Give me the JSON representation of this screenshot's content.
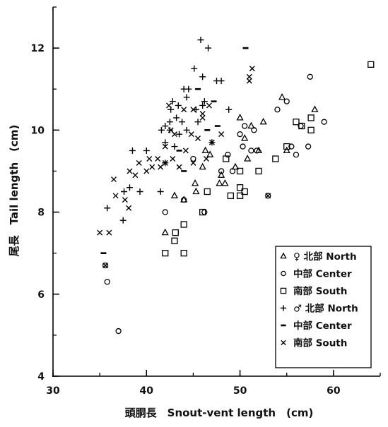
{
  "chart_data": {
    "type": "scatter",
    "xlabel": "頭胴長　Snout-vent length　(cm)",
    "ylabel": "尾長　Tail length　(cm)",
    "xlim": [
      30,
      65
    ],
    "ylim": [
      4,
      13
    ],
    "xticks": [
      "30",
      "40",
      "50",
      "60"
    ],
    "yticks": [
      "4",
      "6",
      "8",
      "10",
      "12"
    ],
    "grid": false,
    "legend_position": "bottom-right",
    "series": [
      {
        "name": "♀ 北部 North",
        "marker": "triangle",
        "legend_label": "△ ♀ 北部 North",
        "points": [
          [
            42,
            7.5
          ],
          [
            43,
            8.4
          ],
          [
            44,
            8.3
          ],
          [
            45.2,
            8.7
          ],
          [
            45.3,
            8.5
          ],
          [
            46,
            9.1
          ],
          [
            46.3,
            9.5
          ],
          [
            46.8,
            9.4
          ],
          [
            47.8,
            8.7
          ],
          [
            48,
            8.9
          ],
          [
            48.4,
            8.7
          ],
          [
            49.5,
            9.1
          ],
          [
            50,
            10.3
          ],
          [
            50.5,
            9.8
          ],
          [
            50.8,
            9.3
          ],
          [
            51.2,
            10.1
          ],
          [
            52,
            9.5
          ],
          [
            52.5,
            10.2
          ],
          [
            54.5,
            10.8
          ],
          [
            55,
            9.5
          ],
          [
            58,
            10.5
          ]
        ]
      },
      {
        "name": "中部 Center",
        "marker": "circle",
        "legend_label": "○ 中部 Center",
        "points": [
          [
            35.6,
            6.7
          ],
          [
            35.8,
            6.3
          ],
          [
            37,
            5.1
          ],
          [
            42,
            8.0
          ],
          [
            44,
            8.3
          ],
          [
            45,
            9.3
          ],
          [
            46.2,
            8.0
          ],
          [
            48,
            9.0
          ],
          [
            48.7,
            9.4
          ],
          [
            49.2,
            9.0
          ],
          [
            50,
            9.9
          ],
          [
            50.3,
            9.6
          ],
          [
            50.5,
            10.1
          ],
          [
            51.2,
            9.5
          ],
          [
            51.5,
            10.0
          ],
          [
            51.8,
            9.5
          ],
          [
            53,
            8.4
          ],
          [
            54,
            10.5
          ],
          [
            55,
            10.7
          ],
          [
            55.5,
            9.6
          ],
          [
            56,
            9.4
          ],
          [
            56.5,
            10.1
          ],
          [
            57.3,
            9.6
          ],
          [
            57.5,
            11.3
          ],
          [
            59,
            10.2
          ]
        ]
      },
      {
        "name": "南部 South",
        "marker": "square",
        "legend_label": "□ 南部 South",
        "points": [
          [
            42,
            7.0
          ],
          [
            43,
            7.3
          ],
          [
            43.1,
            7.5
          ],
          [
            44,
            7.7
          ],
          [
            44,
            7.0
          ],
          [
            46,
            8.0
          ],
          [
            46.5,
            8.5
          ],
          [
            48.5,
            9.3
          ],
          [
            49,
            8.4
          ],
          [
            50,
            8.6
          ],
          [
            50,
            8.4
          ],
          [
            50.5,
            8.5
          ],
          [
            50,
            9.0
          ],
          [
            52,
            9.0
          ],
          [
            53.8,
            9.3
          ],
          [
            55,
            9.6
          ],
          [
            56,
            10.2
          ],
          [
            56.6,
            10.1
          ],
          [
            57.6,
            10.3
          ],
          [
            57.6,
            10.0
          ],
          [
            64,
            11.6
          ]
        ]
      },
      {
        "name": "♂ 北部 North",
        "marker": "plus",
        "legend_label": "+ ♂ 北部 North",
        "points": [
          [
            35.8,
            8.1
          ],
          [
            37.5,
            7.8
          ],
          [
            37.6,
            8.5
          ],
          [
            38.2,
            8.6
          ],
          [
            38.5,
            9.5
          ],
          [
            39.3,
            8.5
          ],
          [
            40,
            9.5
          ],
          [
            41.5,
            8.5
          ],
          [
            42,
            9.2
          ],
          [
            42,
            9.7
          ],
          [
            41.6,
            10.0
          ],
          [
            42,
            10.1
          ],
          [
            42.5,
            10.2
          ],
          [
            42.5,
            10.0
          ],
          [
            42.6,
            10.5
          ],
          [
            42.8,
            10.7
          ],
          [
            43,
            9.6
          ],
          [
            43.2,
            10.3
          ],
          [
            43.4,
            10.6
          ],
          [
            43.5,
            9.9
          ],
          [
            43.8,
            10.2
          ],
          [
            44,
            11.0
          ],
          [
            44.3,
            10.8
          ],
          [
            44.3,
            10.0
          ],
          [
            44.5,
            11.0
          ],
          [
            45.1,
            11.5
          ],
          [
            45.3,
            10.5
          ],
          [
            45.5,
            10.2
          ],
          [
            45.8,
            12.2
          ],
          [
            46,
            11.3
          ],
          [
            46,
            10.6
          ],
          [
            46.2,
            10.7
          ],
          [
            46.6,
            12.0
          ],
          [
            47,
            9.7
          ],
          [
            47.5,
            11.2
          ],
          [
            48,
            11.2
          ],
          [
            48.8,
            10.5
          ]
        ]
      },
      {
        "name": "中部 Center",
        "marker": "dash",
        "legend_label": "- 中部 Center",
        "points": [
          [
            35.4,
            7.0
          ],
          [
            43.5,
            9.5
          ],
          [
            44,
            9.0
          ],
          [
            45.5,
            11.0
          ],
          [
            46.5,
            10.0
          ],
          [
            47.2,
            10.7
          ],
          [
            47.6,
            10.1
          ],
          [
            50.6,
            12.0
          ]
        ]
      },
      {
        "name": "南部 South",
        "marker": "x",
        "legend_label": "× 南部 South",
        "points": [
          [
            35,
            7.5
          ],
          [
            35.6,
            6.7
          ],
          [
            36,
            7.5
          ],
          [
            36.5,
            8.8
          ],
          [
            36.7,
            8.4
          ],
          [
            37.7,
            8.3
          ],
          [
            38.1,
            8.1
          ],
          [
            38.2,
            9.0
          ],
          [
            38.8,
            8.9
          ],
          [
            39.2,
            9.2
          ],
          [
            40,
            9.0
          ],
          [
            40.3,
            9.3
          ],
          [
            40.6,
            9.1
          ],
          [
            41.2,
            9.3
          ],
          [
            41.5,
            9.1
          ],
          [
            42,
            9.2
          ],
          [
            42,
            9.6
          ],
          [
            42.4,
            10.6
          ],
          [
            42.6,
            10.0
          ],
          [
            42.8,
            9.3
          ],
          [
            43,
            9.9
          ],
          [
            43.5,
            9.1
          ],
          [
            44,
            10.5
          ],
          [
            44.2,
            9.5
          ],
          [
            44.8,
            9.9
          ],
          [
            45,
            9.2
          ],
          [
            45,
            10.5
          ],
          [
            45.5,
            9.8
          ],
          [
            46,
            10.4
          ],
          [
            46,
            10.3
          ],
          [
            46.4,
            9.3
          ],
          [
            46.7,
            10.6
          ],
          [
            47,
            9.7
          ],
          [
            48,
            9.9
          ],
          [
            51,
            11.3
          ],
          [
            51.3,
            11.5
          ],
          [
            51,
            11.2
          ],
          [
            53,
            8.4
          ]
        ]
      }
    ]
  }
}
